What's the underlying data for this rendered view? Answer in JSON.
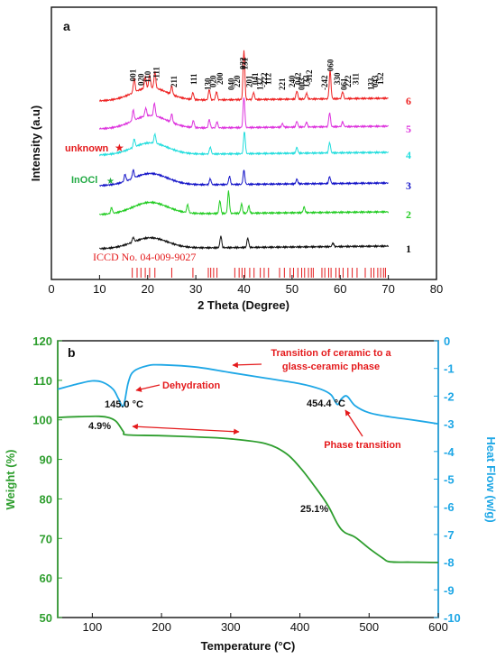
{
  "chart_data": [
    {
      "type": "line",
      "panel_label": "a",
      "xlabel": "2 Theta (Degree)",
      "ylabel": "Intensity (a.u)",
      "xlim": [
        0,
        80
      ],
      "x_ticks": [
        "0",
        "10",
        "20",
        "30",
        "40",
        "50",
        "60",
        "70",
        "80"
      ],
      "series": [
        {
          "name": "1",
          "color": "#111111",
          "offset": 1,
          "broad_height": 0.45,
          "peaks": [
            [
              17.0,
              0.2
            ],
            [
              35.2,
              0.5
            ],
            [
              40.8,
              0.4
            ],
            [
              58.5,
              0.15
            ]
          ]
        },
        {
          "name": "2",
          "color": "#22cc22",
          "offset": 2,
          "broad_height": 0.5,
          "peaks": [
            [
              12.5,
              0.25
            ],
            [
              28.3,
              0.35
            ],
            [
              35.0,
              0.55
            ],
            [
              36.8,
              0.95
            ],
            [
              39.5,
              0.4
            ],
            [
              41.0,
              0.3
            ],
            [
              52.5,
              0.25
            ]
          ]
        },
        {
          "name": "3",
          "color": "#1515c8",
          "offset": 3,
          "broad_height": 0.5,
          "peaks": [
            [
              15.3,
              0.3
            ],
            [
              17.0,
              0.35
            ],
            [
              33.0,
              0.25
            ],
            [
              37.0,
              0.35
            ],
            [
              40.0,
              0.6
            ],
            [
              51.0,
              0.2
            ],
            [
              57.8,
              0.3
            ]
          ]
        },
        {
          "name": "4",
          "color": "#22dddd",
          "offset": 4,
          "broad_height": 0.5,
          "peaks": [
            [
              17.2,
              0.35
            ],
            [
              21.5,
              0.4
            ],
            [
              33.0,
              0.3
            ],
            [
              40.1,
              0.95
            ],
            [
              51.0,
              0.25
            ],
            [
              57.8,
              0.45
            ]
          ]
        },
        {
          "name": "5",
          "color": "#dd33dd",
          "offset": 5,
          "broad_height": 0.55,
          "peaks": [
            [
              17.0,
              0.45
            ],
            [
              19.6,
              0.35
            ],
            [
              21.4,
              0.55
            ],
            [
              25.0,
              0.35
            ],
            [
              29.5,
              0.3
            ],
            [
              32.8,
              0.35
            ],
            [
              34.4,
              0.25
            ],
            [
              40.0,
              1.3
            ],
            [
              48.0,
              0.15
            ],
            [
              51.0,
              0.25
            ],
            [
              53.0,
              0.2
            ],
            [
              57.8,
              0.6
            ],
            [
              60.5,
              0.2
            ]
          ]
        },
        {
          "name": "6",
          "color": "#ee2222",
          "offset": 6,
          "broad_height": 0.55,
          "peaks": [
            [
              17.2,
              0.6
            ],
            [
              19.5,
              0.5
            ],
            [
              20.4,
              0.55
            ],
            [
              21.5,
              0.7
            ],
            [
              25.0,
              0.35
            ],
            [
              29.4,
              0.3
            ],
            [
              32.8,
              0.45
            ],
            [
              34.3,
              0.35
            ],
            [
              40.0,
              2.1
            ],
            [
              42.0,
              0.3
            ],
            [
              51.0,
              0.35
            ],
            [
              53.0,
              0.25
            ],
            [
              57.9,
              1.2
            ],
            [
              60.5,
              0.3
            ]
          ]
        }
      ],
      "hkl_labels": [
        {
          "text": "001",
          "x": 17.0
        },
        {
          "text": "020",
          "x": 18.6
        },
        {
          "text": "110",
          "x": 20.0
        },
        {
          "text": "-111",
          "x": 21.8
        },
        {
          "text": "211",
          "x": 25.5
        },
        {
          "text": "111",
          "x": 29.6
        },
        {
          "text": "130",
          "x": 32.5
        },
        {
          "text": "020",
          "x": 33.6
        },
        {
          "text": "200",
          "x": 35.0
        },
        {
          "text": "040",
          "x": 37.4
        },
        {
          "text": "220",
          "x": 38.6
        },
        {
          "text": "022",
          "x": 39.8
        },
        {
          "text": "131",
          "x": 40.2
        },
        {
          "text": "201",
          "x": 41.1
        },
        {
          "text": "041",
          "x": 42.3
        },
        {
          "text": "132",
          "x": 43.4
        },
        {
          "text": "-222",
          "x": 44.2
        },
        {
          "text": "112",
          "x": 45.1
        },
        {
          "text": "221",
          "x": 48.0
        },
        {
          "text": "240",
          "x": 50.0
        },
        {
          "text": "042",
          "x": 51.2
        },
        {
          "text": "003",
          "x": 52.0
        },
        {
          "text": "132",
          "x": 52.9
        },
        {
          "text": "-312",
          "x": 53.6
        },
        {
          "text": "-242",
          "x": 56.8
        },
        {
          "text": "060",
          "x": 58.0
        },
        {
          "text": "330",
          "x": 59.4
        },
        {
          "text": "061",
          "x": 60.8
        },
        {
          "text": "222",
          "x": 61.6
        },
        {
          "text": "311",
          "x": 63.2
        },
        {
          "text": "133",
          "x": 66.4
        },
        {
          "text": "043",
          "x": 67.3
        },
        {
          "text": "152",
          "x": 68.4
        }
      ],
      "annotations": [
        {
          "text": "unknown",
          "marker": "★",
          "color": "#e41a1c"
        },
        {
          "text": "InOCl",
          "marker": "★",
          "color": "#22aa44"
        }
      ],
      "reference_label": "ICCD No. 04-009-9027",
      "reference_lines": [
        16.8,
        17.8,
        18.6,
        19.5,
        20.4,
        21.5,
        25.0,
        29.4,
        32.6,
        33.1,
        33.7,
        34.4,
        38.1,
        39.0,
        39.6,
        40.2,
        41.2,
        42.1,
        43.4,
        44.2,
        45.1,
        47.4,
        48.4,
        49.6,
        50.3,
        51.2,
        52.0,
        52.6,
        53.4,
        54.0,
        54.4,
        56.2,
        56.8,
        57.6,
        58.1,
        59.1,
        59.8,
        60.6,
        61.6,
        62.5,
        63.5,
        65.2,
        66.4,
        67.0,
        67.8,
        68.4,
        69.0,
        69.4
      ]
    },
    {
      "type": "line",
      "panel_label": "b",
      "xlabel": "Temperature (°C)",
      "ylabel_left": "Weight (%)",
      "ylabel_right": "Heat Flow (w/g)",
      "xlim": [
        50,
        600
      ],
      "ylim_left": [
        50,
        120
      ],
      "ylim_right": [
        -10,
        0
      ],
      "x_ticks": [
        "100",
        "200",
        "300",
        "400",
        "500",
        "600"
      ],
      "y_ticks_left": [
        "50",
        "60",
        "70",
        "80",
        "90",
        "100",
        "110",
        "120"
      ],
      "y_ticks_right": [
        "-10",
        "-9",
        "-8",
        "-7",
        "-6",
        "-5",
        "-4",
        "-3",
        "-2",
        "-1",
        "0"
      ],
      "series": [
        {
          "name": "Weight",
          "axis": "left",
          "color": "#2e9e2e",
          "x": [
            50,
            80,
            110,
            125,
            135,
            145,
            150,
            200,
            260,
            300,
            350,
            380,
            400,
            420,
            440,
            455,
            465,
            480,
            500,
            520,
            530,
            560,
            600
          ],
          "y": [
            100.6,
            100.8,
            100.9,
            100.5,
            99.5,
            97.0,
            96.2,
            96.0,
            95.6,
            95.2,
            94.0,
            91.5,
            88.0,
            83.5,
            78.5,
            73.5,
            71.5,
            70.3,
            67.5,
            65.0,
            64.1,
            64.0,
            63.9
          ]
        },
        {
          "name": "Heat Flow",
          "axis": "right",
          "color": "#1ea7e6",
          "x": [
            50,
            80,
            100,
            115,
            130,
            138,
            145,
            152,
            160,
            180,
            200,
            250,
            300,
            350,
            400,
            430,
            445,
            454,
            460,
            468,
            480,
            500,
            530,
            560,
            600
          ],
          "y": [
            -1.75,
            -1.55,
            -1.45,
            -1.5,
            -1.75,
            -2.1,
            -2.35,
            -1.5,
            -1.1,
            -0.9,
            -0.87,
            -0.95,
            -1.15,
            -1.35,
            -1.55,
            -1.75,
            -1.95,
            -2.3,
            -2.1,
            -2.0,
            -2.35,
            -2.6,
            -2.75,
            -2.85,
            -3.0
          ]
        }
      ],
      "annotations": [
        {
          "text": "Transition of ceramic to a",
          "color": "#e41a1c"
        },
        {
          "text": "glass-ceramic phase",
          "color": "#e41a1c"
        },
        {
          "text": "Dehydration",
          "color": "#e41a1c"
        },
        {
          "text": "145.0 °C",
          "color": "#111111"
        },
        {
          "text": "454.4 °C",
          "color": "#111111"
        },
        {
          "text": "Phase transition",
          "color": "#e41a1c"
        },
        {
          "text": "4.9%",
          "color": "#111111"
        },
        {
          "text": "25.1%",
          "color": "#111111"
        }
      ]
    }
  ]
}
